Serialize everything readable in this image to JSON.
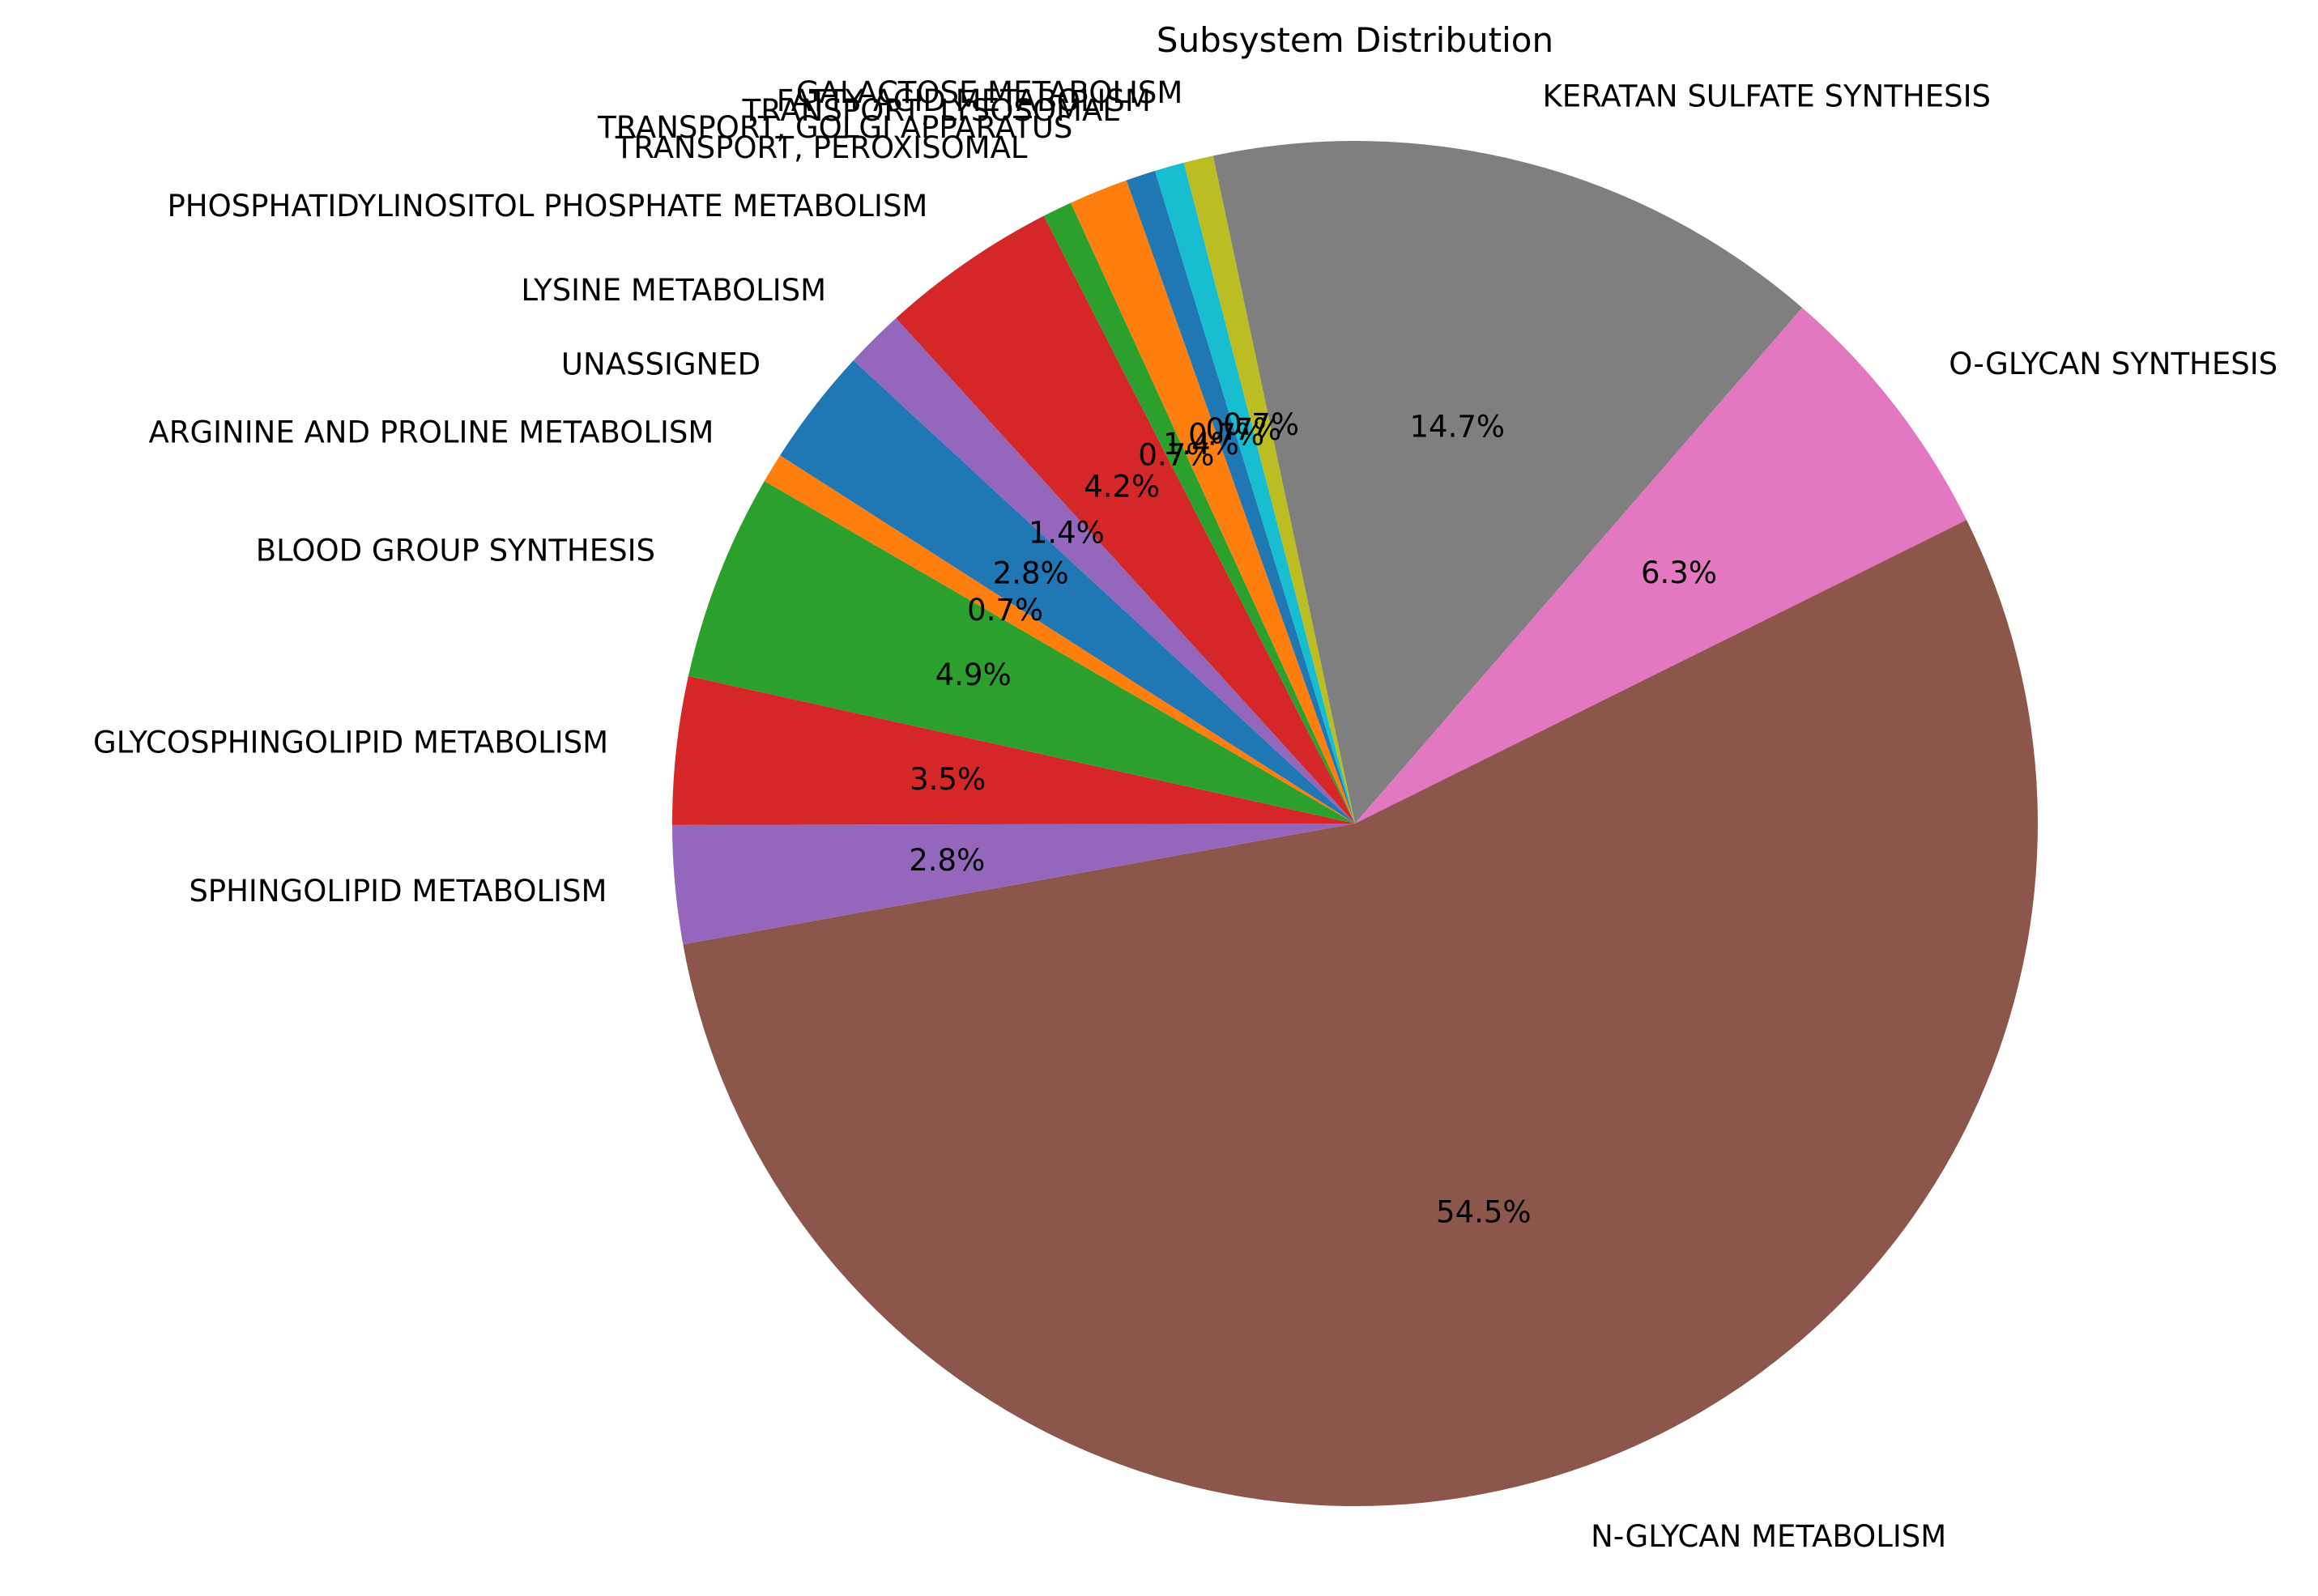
{
  "chart_data": {
    "type": "pie",
    "title": "Subsystem Distribution",
    "slices": [
      {
        "label": "KERATAN SULFATE SYNTHESIS",
        "value": 14.7,
        "pct_label": "14.7%",
        "color": "#7f7f7f"
      },
      {
        "label": "O-GLYCAN SYNTHESIS",
        "value": 6.3,
        "pct_label": "6.3%",
        "color": "#e377c2"
      },
      {
        "label": "N-GLYCAN METABOLISM",
        "value": 54.5,
        "pct_label": "54.5%",
        "color": "#8c564b"
      },
      {
        "label": "SPHINGOLIPID METABOLISM",
        "value": 2.8,
        "pct_label": "2.8%",
        "color": "#9467bd"
      },
      {
        "label": "GLYCOSPHINGOLIPID METABOLISM",
        "value": 3.5,
        "pct_label": "3.5%",
        "color": "#d62728"
      },
      {
        "label": "BLOOD GROUP SYNTHESIS",
        "value": 4.9,
        "pct_label": "4.9%",
        "color": "#2ca02c"
      },
      {
        "label": "ARGININE AND PROLINE METABOLISM",
        "value": 0.7,
        "pct_label": "0.7%",
        "color": "#ff7f0e"
      },
      {
        "label": "UNASSIGNED",
        "value": 2.8,
        "pct_label": "2.8%",
        "color": "#1f77b4"
      },
      {
        "label": "LYSINE METABOLISM",
        "value": 1.4,
        "pct_label": "1.4%",
        "color": "#9467bd"
      },
      {
        "label": "PHOSPHATIDYLINOSITOL PHOSPHATE METABOLISM",
        "value": 4.2,
        "pct_label": "4.2%",
        "color": "#d62728"
      },
      {
        "label": "TRANSPORT, PEROXISOMAL",
        "value": 0.7,
        "pct_label": "0.7%",
        "color": "#2ca02c"
      },
      {
        "label": "TRANSPORT, GOLGI APPARATUS",
        "value": 1.4,
        "pct_label": "1.4%",
        "color": "#ff7f0e"
      },
      {
        "label": "TRANSPORT, LYSOSOMAL",
        "value": 0.7,
        "pct_label": "0.7%",
        "color": "#1f77b4"
      },
      {
        "label": "FATTY ACID METABOLISM",
        "value": 0.7,
        "pct_label": "0.7%",
        "color": "#17becf"
      },
      {
        "label": "GALACTOSE METABOLISM",
        "value": 0.7,
        "pct_label": "0.7%",
        "color": "#bcbd22"
      }
    ]
  }
}
